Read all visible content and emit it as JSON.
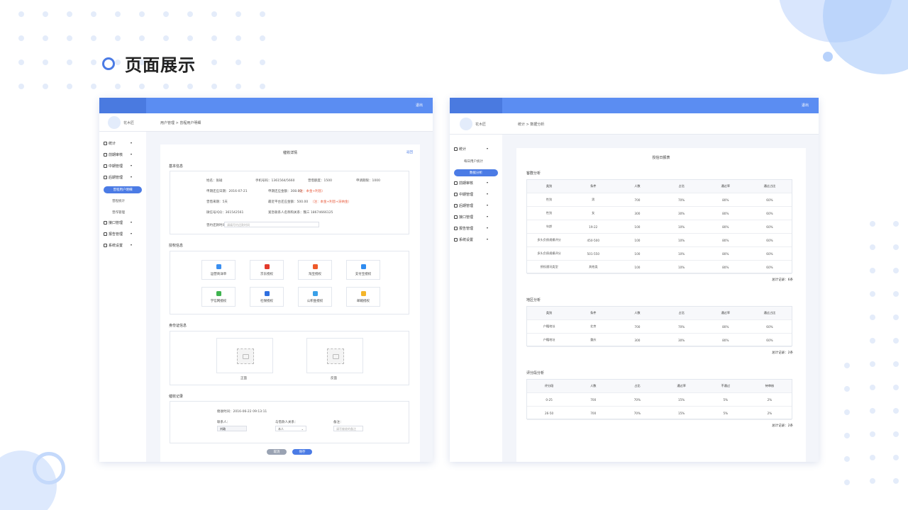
{
  "heading": "页面展示",
  "left": {
    "topbar_exit": "退出",
    "user_name": "花木匠",
    "breadcrumb": "用户管理 > 曾程用户明细",
    "sidebar": [
      {
        "label": "统计"
      },
      {
        "label": "前期审核"
      },
      {
        "label": "中期管理"
      },
      {
        "label": "后期管理"
      },
      {
        "label": "接口管理"
      },
      {
        "label": "报告管理"
      },
      {
        "label": "系统设置"
      }
    ],
    "sidebar_sub": [
      "曾程用户明细",
      "曾程统计",
      "曾作管理"
    ],
    "card_title": "催收详情",
    "back": "返回",
    "basic_title": "基本信息",
    "basic_rows": [
      [
        "姓名：张碰",
        "手机号码：1361564/5660",
        "曾借额度：1500",
        "申请期限：1000"
      ],
      [
        "申期还应日期：2016-07-21",
        "申期还应金额：308.00",
        "曾借来期：5天",
        "最近平台还应金额：500.00"
      ],
      [
        "微信号/QQ：361542561",
        "紧急联系人名称和关系：魏三 18674666125"
      ]
    ],
    "red_a": "（注：本金+利息）",
    "red_b": "（注：本金+利息+滞纳金）",
    "remark_label": "曾约还款时间：",
    "remark_placeholder": "请填写约还款时间",
    "auth_title": "授权信息",
    "auth_items": [
      {
        "label": "运营商详单",
        "color": "#3b8ff0"
      },
      {
        "label": "京东授权",
        "color": "#e33a2c"
      },
      {
        "label": "淘宝授权",
        "color": "#ee5a2a"
      },
      {
        "label": "支付宝授权",
        "color": "#2f8cf0"
      },
      {
        "label": "学信网授权",
        "color": "#3fb34f"
      },
      {
        "label": "社保授权",
        "color": "#2f6fe0"
      },
      {
        "label": "公积金授权",
        "color": "#3aa0e8"
      },
      {
        "label": "邮箱授权",
        "color": "#f4b52a"
      }
    ],
    "id_title": "身份证信息",
    "id_front": "正面",
    "id_back": "反面",
    "log_title": "催收记录",
    "log_time": "催收时间：2016-06-22 09:13:11",
    "log_f1_label": "联系人：",
    "log_f1_value": "刘璐",
    "log_f2_label": "与借款人关系：",
    "log_f2_value": "本人",
    "log_f3_label": "备注：",
    "log_f3_placeholder": "请写催收的备注",
    "btn_cancel": "取消",
    "btn_save": "保存"
  },
  "right": {
    "topbar_exit": "退出",
    "user_name": "花木匠",
    "breadcrumb": "统计 > 数据分析",
    "sidebar": [
      {
        "label": "统计"
      },
      {
        "label": "前期审核"
      },
      {
        "label": "中期管理"
      },
      {
        "label": "后期管理"
      },
      {
        "label": "接口管理"
      },
      {
        "label": "报告管理"
      },
      {
        "label": "系统设置"
      }
    ],
    "sidebar_sub": [
      "每日用户统计",
      "数据分析"
    ],
    "card_title": "授信日报表",
    "sections": [
      {
        "title": "客群分析",
        "headers": [
          "类别",
          "条件",
          "人数",
          "占比",
          "通过率",
          "通过占比"
        ],
        "rows": [
          [
            "性别",
            "男",
            "700",
            "70%",
            "80%",
            "60%"
          ],
          [
            "性别",
            "女",
            "300",
            "30%",
            "80%",
            "60%"
          ],
          [
            "年龄",
            "19-22",
            "100",
            "10%",
            "80%",
            "60%"
          ],
          [
            "多头负债规模评分",
            "450-500",
            "100",
            "10%",
            "80%",
            "60%"
          ],
          [
            "多头负债规模评分",
            "501-550",
            "100",
            "10%",
            "80%",
            "60%"
          ],
          [
            "授权通讯类型",
            "其他类",
            "100",
            "10%",
            "80%",
            "60%"
          ]
        ],
        "total": "总计记录：6条"
      },
      {
        "title": "地区分析",
        "headers": [
          "类别",
          "条件",
          "人数",
          "占比",
          "通过率",
          "通过占比"
        ],
        "rows": [
          [
            "户籍地址",
            "北京",
            "700",
            "70%",
            "80%",
            "60%"
          ],
          [
            "户籍地址",
            "重庆",
            "300",
            "30%",
            "80%",
            "60%"
          ]
        ],
        "total": "总计记录：2条"
      },
      {
        "title": "评分段分析",
        "headers": [
          "评分段",
          "人数",
          "占比",
          "通过率",
          "不通过",
          "待审核"
        ],
        "rows": [
          [
            "0-25",
            "700",
            "70%",
            "15%",
            "5%",
            "2%"
          ],
          [
            "26-50",
            "700",
            "70%",
            "15%",
            "5%",
            "2%"
          ]
        ],
        "total": "总计记录：2条"
      }
    ]
  },
  "colors": {
    "primary": "#4b7be5",
    "topbar": "#5b8df2",
    "warning": "#e85a3c"
  }
}
